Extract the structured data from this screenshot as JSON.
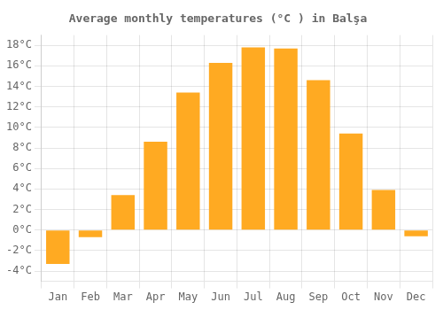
{
  "chart_data": {
    "type": "bar",
    "title": "Average monthly temperatures (°C ) in Balşa",
    "categories": [
      "Jan",
      "Feb",
      "Mar",
      "Apr",
      "May",
      "Jun",
      "Jul",
      "Aug",
      "Sep",
      "Oct",
      "Nov",
      "Dec"
    ],
    "values": [
      -3.3,
      -0.7,
      3.4,
      8.6,
      13.4,
      16.3,
      17.8,
      17.7,
      14.6,
      9.4,
      3.9,
      -0.6
    ],
    "color": "#FFAA22",
    "ylim": [
      -5,
      19
    ],
    "yticks": [
      {
        "value": -4,
        "label": "-4°C"
      },
      {
        "value": -2,
        "label": "-2°C"
      },
      {
        "value": 0,
        "label": "0°C"
      },
      {
        "value": 2,
        "label": "2°C"
      },
      {
        "value": 4,
        "label": "4°C"
      },
      {
        "value": 6,
        "label": "6°C"
      },
      {
        "value": 8,
        "label": "8°C"
      },
      {
        "value": 10,
        "label": "10°C"
      },
      {
        "value": 12,
        "label": "12°C"
      },
      {
        "value": 14,
        "label": "14°C"
      },
      {
        "value": 16,
        "label": "16°C"
      },
      {
        "value": 18,
        "label": "18°C"
      }
    ],
    "grid": true
  }
}
